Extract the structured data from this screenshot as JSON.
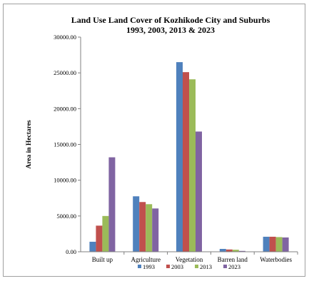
{
  "chart_data": {
    "type": "bar",
    "title": "Land Use Land Cover of Kozhikode City and Suburbs",
    "subtitle": "1993, 2003, 2013 & 2023",
    "xlabel": "",
    "ylabel": "Area in Hectares",
    "ylim": [
      0,
      30000
    ],
    "yticks": [
      "0.00",
      "5000.00",
      "10000.00",
      "15000.00",
      "20000.00",
      "25000.00",
      "30000.00"
    ],
    "categories": [
      "Built up",
      "Agriculture",
      "Vegetation",
      "Barren land",
      "Waterbodies"
    ],
    "series": [
      {
        "name": "1993",
        "color": "#4f81bd",
        "values": [
          1400,
          7750,
          26500,
          400,
          2100
        ]
      },
      {
        "name": "2003",
        "color": "#c0504d",
        "values": [
          3650,
          6950,
          25100,
          320,
          2100
        ]
      },
      {
        "name": "2013",
        "color": "#9bbb59",
        "values": [
          5000,
          6650,
          24100,
          280,
          2050
        ]
      },
      {
        "name": "2023",
        "color": "#8064a2",
        "values": [
          13200,
          6050,
          16800,
          120,
          2000
        ]
      }
    ],
    "grid": false,
    "legend": "bottom"
  }
}
